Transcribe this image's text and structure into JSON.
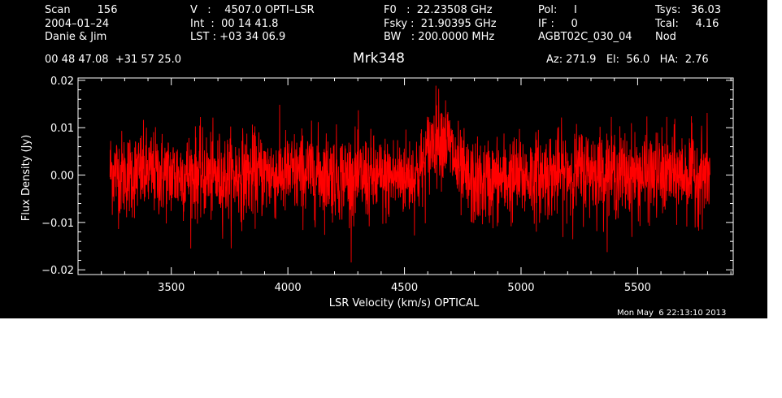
{
  "header": {
    "rows": [
      [
        "Scan        156",
        "V   :    4507.0 OPTI–LSR",
        "F0   :  22.23508 GHz",
        "Pol:     I",
        "Tsys:   36.03"
      ],
      [
        "2004–01–24",
        "Int  :  00 14 41.8",
        "Fsky :  21.90395 GHz",
        "IF :     0",
        "Tcal:     4.16"
      ],
      [
        "Danie & Jim",
        "LST : +03 34 06.9",
        "BW   : 200.0000 MHz",
        "AGBT02C_030_04",
        "Nod"
      ]
    ],
    "coords": "00 48 47.08  +31 57 25.0",
    "azelha": "Az: 271.9   El:  56.0   HA:  2.76"
  },
  "timestamp": "Mon May  6 22:13:10 2013",
  "colors": {
    "background": "#000000",
    "axes": "#ffffff",
    "trace": "#ff0000"
  },
  "chart_data": {
    "type": "line",
    "title": "Mrk348",
    "xlabel": "LSR Velocity (km/s) OPTICAL",
    "ylabel": "Flux Density (Jy)",
    "xlim": [
      3100,
      5910
    ],
    "ylim": [
      -0.021,
      0.0205
    ],
    "xticks": [
      3500,
      4000,
      4500,
      5000,
      5500
    ],
    "xticklabels": [
      "3500",
      "4000",
      "4500",
      "5000",
      "5500"
    ],
    "yticks": [
      -0.02,
      -0.01,
      0.0,
      0.01,
      0.02
    ],
    "yticklabels": [
      "−0.02",
      "−0.01",
      "0.00",
      "0.01",
      "0.02"
    ],
    "grid": false,
    "series": [
      {
        "color": "#ff0000",
        "x_range": [
          3237,
          5810
        ],
        "noise_rms": 0.0045,
        "x": [
          3237,
          3300,
          3400,
          3500,
          3600,
          3700,
          3800,
          3900,
          4000,
          4100,
          4200,
          4300,
          4400,
          4450,
          4500,
          4540,
          4570,
          4590,
          4610,
          4630,
          4650,
          4670,
          4690,
          4710,
          4730,
          4760,
          4800,
          4850,
          4900,
          5000,
          5100,
          5200,
          5300,
          5400,
          5500,
          5600,
          5700,
          5810
        ],
        "y": [
          0.001,
          0.0,
          0.0005,
          0.0,
          0.0002,
          -0.0005,
          0.0,
          0.0003,
          0.0,
          0.0005,
          0.0,
          -0.0005,
          -0.001,
          -0.0005,
          0.0,
          0.0,
          0.001,
          0.003,
          0.006,
          0.008,
          0.0085,
          0.008,
          0.0065,
          0.004,
          0.001,
          -0.001,
          -0.002,
          -0.0015,
          -0.001,
          -0.0005,
          0.0,
          0.0005,
          0.001,
          0.0005,
          0.0,
          0.0,
          0.0003,
          0.0
        ]
      }
    ]
  }
}
